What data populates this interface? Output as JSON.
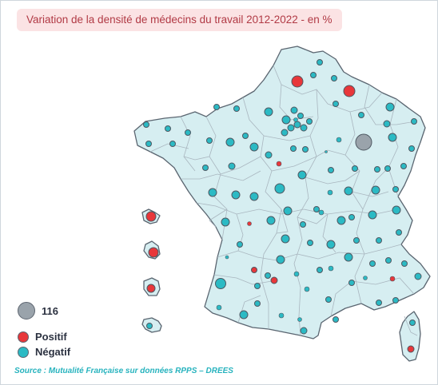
{
  "title": "Variation de la densité de médecins du travail 2012-2022 - en %",
  "legend": {
    "size_reference": {
      "value": "116",
      "color": "#9aa3ab"
    },
    "positive": {
      "label": "Positif",
      "color": "#e8373a"
    },
    "negative": {
      "label": "Négatif",
      "color": "#2bbac4"
    }
  },
  "source": "Source : Mutualité Française sur données RPPS – DREES",
  "colors": {
    "land": "#d6eef1",
    "border": "#5a6570",
    "title_background": "#fbe3e4",
    "title_text": "#b13a45",
    "source_text": "#27b3be"
  },
  "map_symbols": {
    "kinds": [
      "negative",
      "positive",
      "reference"
    ],
    "note_sizes": "circle area proportional to absolute variation"
  }
}
